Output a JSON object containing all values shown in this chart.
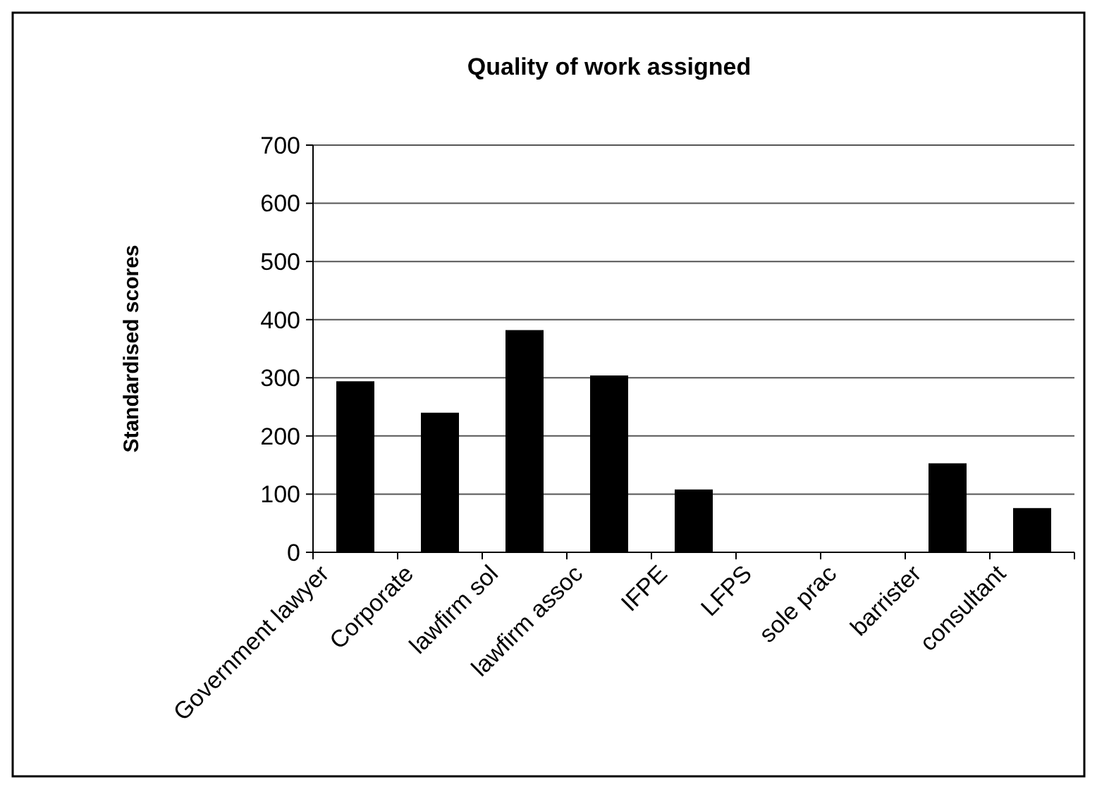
{
  "chart_data": {
    "type": "bar",
    "title": "Quality of work assigned",
    "ylabel": "Standardised scores",
    "categories": [
      "Government lawyer",
      "Corporate",
      "lawfirm sol",
      "lawfirm assoc",
      "IFPE",
      "LFPS",
      "sole prac",
      "barrister",
      "consultant"
    ],
    "values": [
      294,
      240,
      382,
      304,
      108,
      0,
      0,
      153,
      76
    ],
    "color": "#000000",
    "ylim": [
      0,
      700
    ],
    "yticks": [
      0,
      100,
      200,
      300,
      400,
      500,
      600,
      700
    ],
    "grid": "y"
  }
}
